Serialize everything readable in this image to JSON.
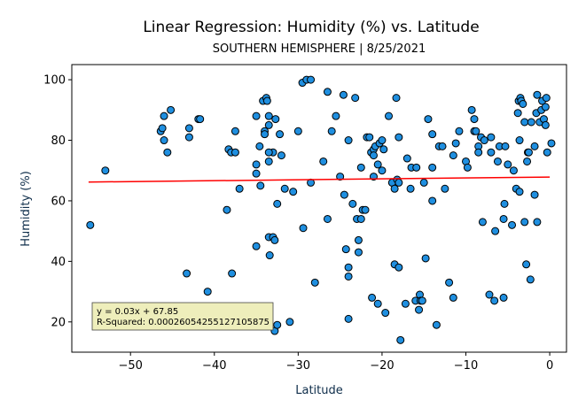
{
  "chart_data": {
    "type": "scatter",
    "title": "Linear Regression: Humidity (%) vs. Latitude",
    "subtitle": "SOUTHERN HEMISPHERE | 8/25/2021",
    "xlabel": "Latitude",
    "ylabel": "Humidity (%)",
    "xlim": [
      -57,
      2
    ],
    "ylim": [
      10,
      105
    ],
    "xticks": [
      -50,
      -40,
      -30,
      -20,
      -10,
      0
    ],
    "xtick_labels": [
      "−50",
      "−40",
      "−30",
      "−20",
      "−10",
      "0"
    ],
    "yticks": [
      20,
      40,
      60,
      80,
      100
    ],
    "ytick_labels": [
      "20",
      "40",
      "60",
      "80",
      "100"
    ],
    "grid": false,
    "colors": {
      "point_fill": "#1f8fe0",
      "point_edge": "#000000",
      "regression_line": "#ff0000",
      "annotation_bg": "#eeeebb"
    },
    "regression": {
      "slope": 0.03,
      "intercept": 67.85,
      "x_range": [
        -55,
        0
      ]
    },
    "annotation": {
      "line1": "y = 0.03x + 67.85",
      "line2": "R-Squared: 0.00026054255127105875"
    },
    "points": [
      [
        -54.8,
        52
      ],
      [
        -53,
        70
      ],
      [
        -46.4,
        83
      ],
      [
        -46.2,
        84
      ],
      [
        -46,
        80
      ],
      [
        -46,
        88
      ],
      [
        -45.6,
        76
      ],
      [
        -45.2,
        90
      ],
      [
        -43,
        81
      ],
      [
        -43,
        84
      ],
      [
        -41.9,
        87
      ],
      [
        -41.7,
        87
      ],
      [
        -40.8,
        30
      ],
      [
        -43.3,
        36
      ],
      [
        -38.5,
        57
      ],
      [
        -38.3,
        77
      ],
      [
        -38,
        76
      ],
      [
        -37.5,
        76
      ],
      [
        -37.9,
        36
      ],
      [
        -37.5,
        83
      ],
      [
        -37,
        64
      ],
      [
        -35,
        88
      ],
      [
        -35,
        69
      ],
      [
        -35,
        72
      ],
      [
        -35,
        45
      ],
      [
        -34.6,
        78
      ],
      [
        -34.5,
        65
      ],
      [
        -34.2,
        93
      ],
      [
        -34,
        83
      ],
      [
        -34,
        82
      ],
      [
        -33.8,
        94
      ],
      [
        -33.7,
        93
      ],
      [
        -33.5,
        88
      ],
      [
        -33.5,
        85
      ],
      [
        -33.5,
        73
      ],
      [
        -33.5,
        48
      ],
      [
        -33.4,
        42
      ],
      [
        -33,
        48
      ],
      [
        -33,
        76
      ],
      [
        -32.8,
        47
      ],
      [
        -33.5,
        76
      ],
      [
        -32.8,
        17
      ],
      [
        -32.7,
        87
      ],
      [
        -32.5,
        59
      ],
      [
        -32.5,
        19
      ],
      [
        -32.2,
        82
      ],
      [
        -32,
        75
      ],
      [
        -31.6,
        64
      ],
      [
        -31,
        20
      ],
      [
        -30.6,
        63
      ],
      [
        -30,
        83
      ],
      [
        -29.5,
        99
      ],
      [
        -29,
        100
      ],
      [
        -29.4,
        51
      ],
      [
        -28.5,
        100
      ],
      [
        -28.5,
        66
      ],
      [
        -28,
        33
      ],
      [
        -27,
        73
      ],
      [
        -26.5,
        96
      ],
      [
        -26.5,
        54
      ],
      [
        -26,
        83
      ],
      [
        -25.5,
        88
      ],
      [
        -25,
        68
      ],
      [
        -24.6,
        95
      ],
      [
        -24.5,
        62
      ],
      [
        -24.3,
        44
      ],
      [
        -24,
        80
      ],
      [
        -24,
        38
      ],
      [
        -24,
        35
      ],
      [
        -24,
        21
      ],
      [
        -23.5,
        59
      ],
      [
        -23.2,
        94
      ],
      [
        -23,
        54
      ],
      [
        -22.8,
        47
      ],
      [
        -22.8,
        43
      ],
      [
        -22.5,
        71
      ],
      [
        -22.5,
        54
      ],
      [
        -22.3,
        57
      ],
      [
        -22,
        57
      ],
      [
        -21.8,
        81
      ],
      [
        -21.5,
        81
      ],
      [
        -21.3,
        76
      ],
      [
        -21.2,
        28
      ],
      [
        -21,
        77
      ],
      [
        -21,
        75
      ],
      [
        -21,
        68
      ],
      [
        -20.8,
        78
      ],
      [
        -20.5,
        72
      ],
      [
        -20.5,
        26
      ],
      [
        -20.3,
        79
      ],
      [
        -20,
        80
      ],
      [
        -20,
        70
      ],
      [
        -19.8,
        77
      ],
      [
        -19.6,
        23
      ],
      [
        -19.2,
        88
      ],
      [
        -18.8,
        66
      ],
      [
        -18.5,
        64
      ],
      [
        -18.5,
        39
      ],
      [
        -18.3,
        94
      ],
      [
        -18.2,
        67
      ],
      [
        -18,
        81
      ],
      [
        -18,
        66
      ],
      [
        -18,
        38
      ],
      [
        -17.8,
        14
      ],
      [
        -17.2,
        26
      ],
      [
        -17,
        74
      ],
      [
        -16.6,
        64
      ],
      [
        -16.5,
        71
      ],
      [
        -16,
        27
      ],
      [
        -15.9,
        71
      ],
      [
        -15.6,
        24
      ],
      [
        -15.5,
        29
      ],
      [
        -15.4,
        27
      ],
      [
        -15.2,
        27
      ],
      [
        -15,
        66
      ],
      [
        -14.8,
        41
      ],
      [
        -14.5,
        87
      ],
      [
        -14,
        82
      ],
      [
        -14,
        71
      ],
      [
        -14,
        60
      ],
      [
        -13.5,
        19
      ],
      [
        -13.2,
        78
      ],
      [
        -12.8,
        78
      ],
      [
        -12.5,
        64
      ],
      [
        -12,
        33
      ],
      [
        -11.5,
        75
      ],
      [
        -11.5,
        28
      ],
      [
        -11.2,
        79
      ],
      [
        -10.8,
        83
      ],
      [
        -10,
        73
      ],
      [
        -9.8,
        71
      ],
      [
        -9.3,
        90
      ],
      [
        -9,
        87
      ],
      [
        -9,
        83
      ],
      [
        -8.8,
        83
      ],
      [
        -8.5,
        78
      ],
      [
        -8.5,
        76
      ],
      [
        -8.2,
        81
      ],
      [
        -8,
        53
      ],
      [
        -7.8,
        80
      ],
      [
        -7.2,
        29
      ],
      [
        -7,
        81
      ],
      [
        -7,
        76
      ],
      [
        -6.6,
        27
      ],
      [
        -6.5,
        50
      ],
      [
        -6.2,
        73
      ],
      [
        -6,
        78
      ],
      [
        -5.5,
        28
      ],
      [
        -5.5,
        54
      ],
      [
        -5.4,
        59
      ],
      [
        -5.3,
        78
      ],
      [
        -5,
        72
      ],
      [
        -4.5,
        52
      ],
      [
        -4.3,
        70
      ],
      [
        -4,
        64
      ],
      [
        -3.8,
        89
      ],
      [
        -3.7,
        93
      ],
      [
        -3.6,
        63
      ],
      [
        -3.6,
        80
      ],
      [
        -3.5,
        94
      ],
      [
        -3.4,
        93
      ],
      [
        -3.2,
        92
      ],
      [
        -3,
        86
      ],
      [
        -3,
        53
      ],
      [
        -2.8,
        39
      ],
      [
        -2.7,
        73
      ],
      [
        -2.6,
        76
      ],
      [
        -2.5,
        76
      ],
      [
        -2.3,
        34
      ],
      [
        -2.2,
        86
      ],
      [
        -1.8,
        62
      ],
      [
        -1.8,
        78
      ],
      [
        -1.6,
        89
      ],
      [
        -1.5,
        95
      ],
      [
        -1.5,
        53
      ],
      [
        -1.2,
        86
      ],
      [
        -1,
        90
      ],
      [
        -0.9,
        93
      ],
      [
        -0.7,
        87
      ],
      [
        -0.5,
        85
      ],
      [
        -0.5,
        91
      ],
      [
        -0.4,
        94
      ],
      [
        -0.3,
        76
      ],
      [
        0.2,
        79
      ]
    ]
  }
}
